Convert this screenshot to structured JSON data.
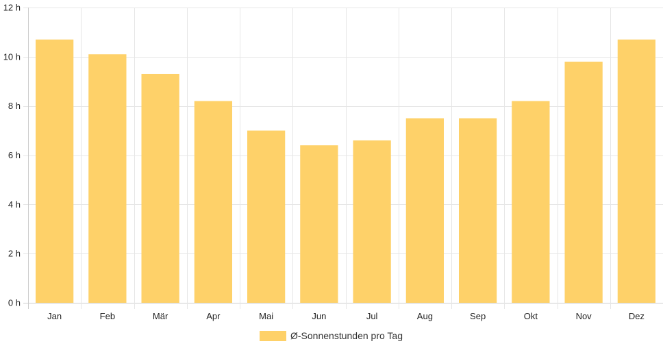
{
  "chart_data": {
    "type": "bar",
    "categories": [
      "Jan",
      "Feb",
      "Mär",
      "Apr",
      "Mai",
      "Jun",
      "Jul",
      "Aug",
      "Sep",
      "Okt",
      "Nov",
      "Dez"
    ],
    "series": [
      {
        "name": "Ø-Sonnenstunden pro Tag",
        "values": [
          10.7,
          10.1,
          9.3,
          8.2,
          7.0,
          6.4,
          6.6,
          7.5,
          7.5,
          8.2,
          9.8,
          10.7
        ]
      }
    ],
    "ylim": [
      0,
      12
    ],
    "yticks": [
      0,
      2,
      4,
      6,
      8,
      10,
      12
    ],
    "ytick_suffix": " h",
    "grid": true,
    "legend_position": "bottom",
    "colors": {
      "bar": "#fed169",
      "grid": "#e6e6e6",
      "axis": "#cccccc"
    }
  }
}
